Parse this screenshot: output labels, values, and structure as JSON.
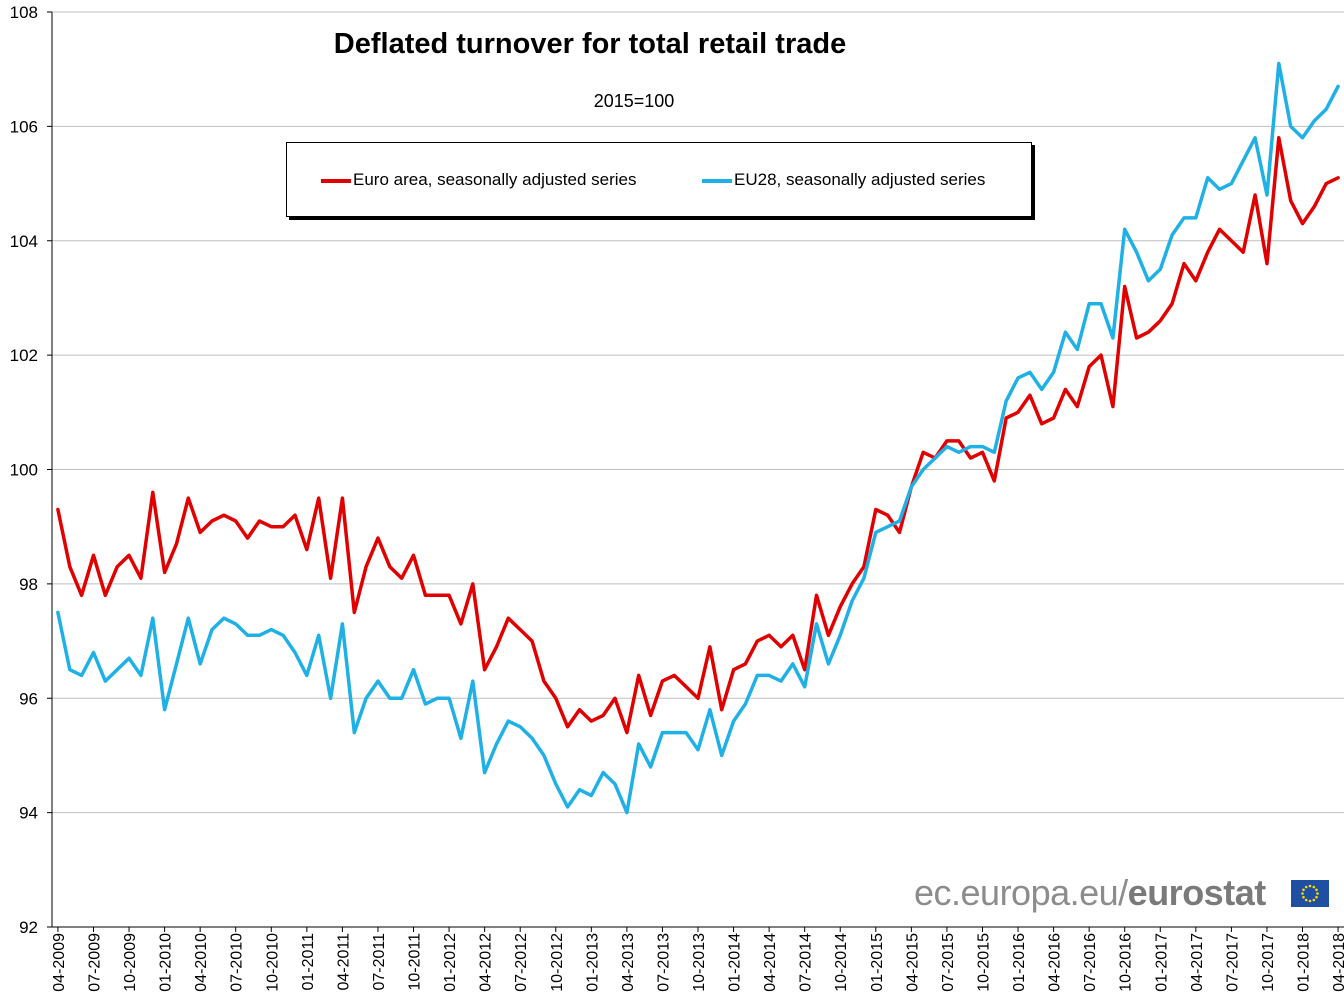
{
  "chart_data": {
    "type": "line",
    "title": "Deflated turnover for total retail trade",
    "subtitle": "2015=100",
    "xlabel": "",
    "ylabel": "",
    "ylim": [
      92,
      108
    ],
    "yticks": [
      92,
      94,
      96,
      98,
      100,
      102,
      104,
      106,
      108
    ],
    "grid": true,
    "legend_position": "top-center",
    "colors": {
      "euro_area": "#e00000",
      "eu28": "#1fb0e6",
      "grid": "#bfbfbf",
      "axis": "#000000"
    },
    "x_tick_labels": [
      "04-2009",
      "07-2009",
      "10-2009",
      "01-2010",
      "04-2010",
      "07-2010",
      "10-2010",
      "01-2011",
      "04-2011",
      "07-2011",
      "10-2011",
      "01-2012",
      "04-2012",
      "07-2012",
      "10-2012",
      "01-2013",
      "04-2013",
      "07-2013",
      "10-2013",
      "01-2014",
      "04-2014",
      "07-2014",
      "10-2014",
      "01-2015",
      "04-2015",
      "07-2015",
      "10-2015",
      "01-2016",
      "04-2016",
      "07-2016",
      "10-2016",
      "01-2017",
      "04-2017",
      "07-2017",
      "10-2017",
      "01-2018",
      "04-2018"
    ],
    "series": [
      {
        "name": "Euro area, seasonally adjusted series",
        "color": "#e00000",
        "values": [
          99.3,
          98.3,
          97.8,
          98.5,
          97.8,
          98.3,
          98.5,
          98.1,
          99.6,
          98.2,
          98.7,
          99.5,
          98.9,
          99.1,
          99.2,
          99.1,
          98.8,
          99.1,
          99.0,
          99.0,
          99.2,
          98.6,
          99.5,
          98.1,
          99.5,
          97.5,
          98.3,
          98.8,
          98.3,
          98.1,
          98.5,
          97.8,
          97.8,
          97.8,
          97.3,
          98.0,
          96.5,
          96.9,
          97.4,
          97.2,
          97.0,
          96.3,
          96.0,
          95.5,
          95.8,
          95.6,
          95.7,
          96.0,
          95.4,
          96.4,
          95.7,
          96.3,
          96.4,
          96.2,
          96.0,
          96.9,
          95.8,
          96.5,
          96.6,
          97.0,
          97.1,
          96.9,
          97.1,
          96.5,
          97.8,
          97.1,
          97.6,
          98.0,
          98.3,
          99.3,
          99.2,
          98.9,
          99.7,
          100.3,
          100.2,
          100.5,
          100.5,
          100.2,
          100.3,
          99.8,
          100.9,
          101.0,
          101.3,
          100.8,
          100.9,
          101.4,
          101.1,
          101.8,
          102.0,
          101.1,
          103.2,
          102.3,
          102.4,
          102.6,
          102.9,
          103.6,
          103.3,
          103.8,
          104.2,
          104.0,
          103.8,
          104.8,
          103.6,
          105.8,
          104.7,
          104.3,
          104.6,
          105.0,
          105.1
        ]
      },
      {
        "name": "EU28, seasonally adjusted series",
        "color": "#1fb0e6",
        "values": [
          97.5,
          96.5,
          96.4,
          96.8,
          96.3,
          96.5,
          96.7,
          96.4,
          97.4,
          95.8,
          96.6,
          97.4,
          96.6,
          97.2,
          97.4,
          97.3,
          97.1,
          97.1,
          97.2,
          97.1,
          96.8,
          96.4,
          97.1,
          96.0,
          97.3,
          95.4,
          96.0,
          96.3,
          96.0,
          96.0,
          96.5,
          95.9,
          96.0,
          96.0,
          95.3,
          96.3,
          94.7,
          95.2,
          95.6,
          95.5,
          95.3,
          95.0,
          94.5,
          94.1,
          94.4,
          94.3,
          94.7,
          94.5,
          94.0,
          95.2,
          94.8,
          95.4,
          95.4,
          95.4,
          95.1,
          95.8,
          95.0,
          95.6,
          95.9,
          96.4,
          96.4,
          96.3,
          96.6,
          96.2,
          97.3,
          96.6,
          97.1,
          97.7,
          98.1,
          98.9,
          99.0,
          99.1,
          99.7,
          100.0,
          100.2,
          100.4,
          100.3,
          100.4,
          100.4,
          100.3,
          101.2,
          101.6,
          101.7,
          101.4,
          101.7,
          102.4,
          102.1,
          102.9,
          102.9,
          102.3,
          104.2,
          103.8,
          103.3,
          103.5,
          104.1,
          104.4,
          104.4,
          105.1,
          104.9,
          105.0,
          105.4,
          105.8,
          104.8,
          107.1,
          106.0,
          105.8,
          106.1,
          106.3,
          106.7
        ]
      }
    ]
  },
  "brand": {
    "domain": "ec.europa.eu/",
    "name": "eurostat"
  }
}
